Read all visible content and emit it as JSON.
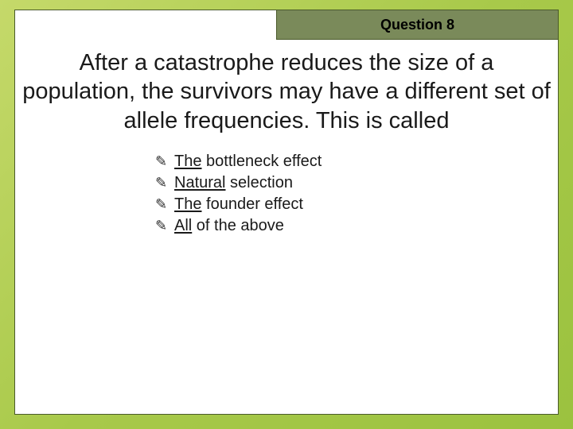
{
  "slide": {
    "title": "Question 8",
    "question": "After a catastrophe reduces the size of a population, the survivors may have a different set of allele frequencies. This is called",
    "options": [
      {
        "underlined": "The",
        "rest": " bottleneck effect"
      },
      {
        "underlined": "Natural",
        "rest": " selection"
      },
      {
        "underlined": "The",
        "rest": " founder effect"
      },
      {
        "underlined": "All",
        "rest": " of the above"
      }
    ],
    "colors": {
      "background_gradient_start": "#c5d96a",
      "background_gradient_end": "#9bc23f",
      "frame_border": "#4a5a2a",
      "tab_fill": "#7a8a5a",
      "text": "#1a1a1a"
    },
    "typography": {
      "title_fontsize": 18,
      "question_fontsize": 29,
      "option_fontsize": 20
    }
  }
}
